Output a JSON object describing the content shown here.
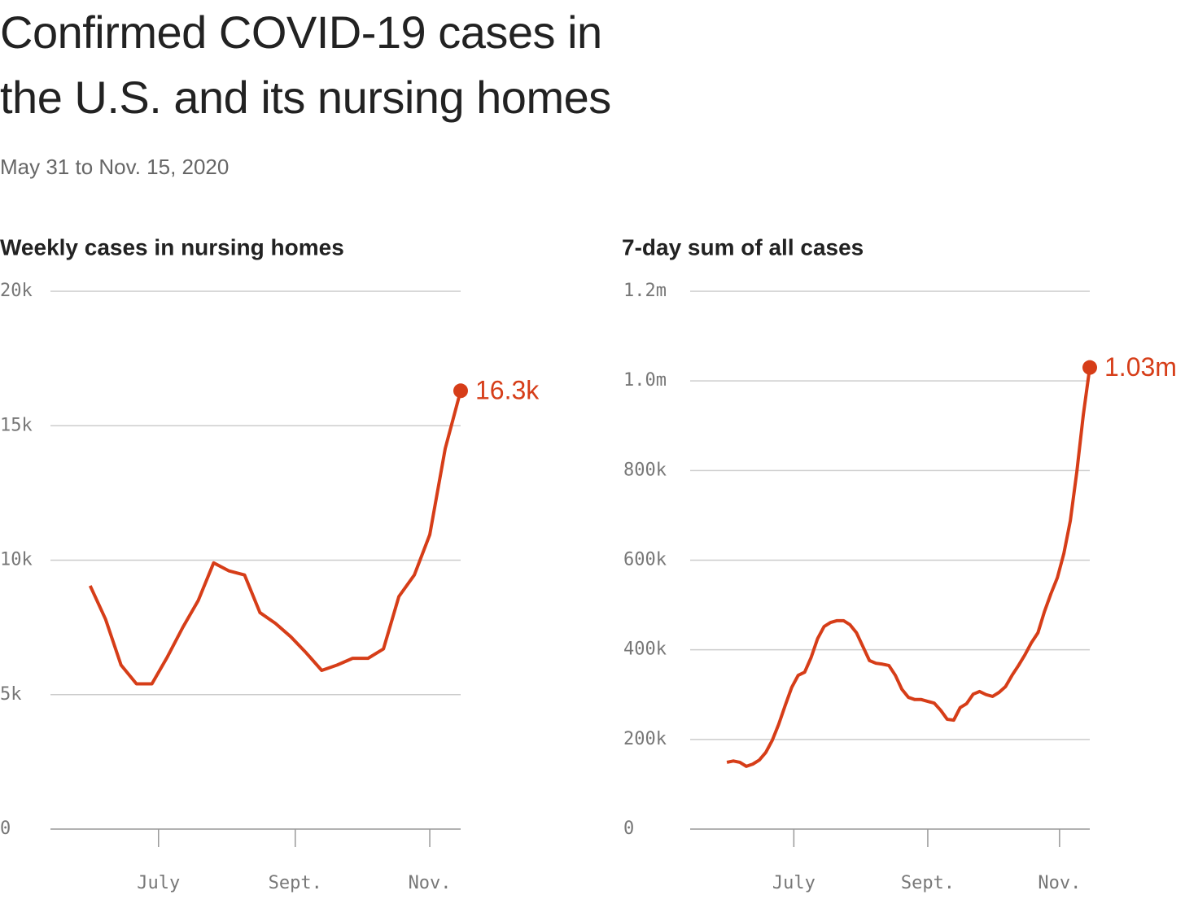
{
  "title": "Confirmed COVID-19 cases in\nthe U.S. and its nursing homes",
  "subtitle": "May 31 to Nov. 15, 2020",
  "chart_data": [
    {
      "type": "line",
      "title": "Weekly cases in nursing homes",
      "color": "#d63d18",
      "grid": true,
      "x": [
        "2020-05-31",
        "2020-06-07",
        "2020-06-14",
        "2020-06-21",
        "2020-06-28",
        "2020-07-05",
        "2020-07-12",
        "2020-07-19",
        "2020-07-26",
        "2020-08-02",
        "2020-08-09",
        "2020-08-16",
        "2020-08-23",
        "2020-08-30",
        "2020-09-06",
        "2020-09-13",
        "2020-09-20",
        "2020-09-27",
        "2020-10-04",
        "2020-10-11",
        "2020-10-18",
        "2020-10-25",
        "2020-11-01",
        "2020-11-08",
        "2020-11-15"
      ],
      "values": [
        9050,
        7800,
        6100,
        5400,
        5400,
        6400,
        7500,
        8500,
        9900,
        9600,
        9450,
        8050,
        7650,
        7150,
        6550,
        5900,
        6100,
        6350,
        6350,
        6700,
        8650,
        9450,
        10950,
        14150,
        16300
      ],
      "value_labels": [
        null,
        null,
        null,
        null,
        null,
        null,
        null,
        null,
        null,
        null,
        null,
        null,
        null,
        null,
        null,
        null,
        null,
        null,
        null,
        null,
        null,
        null,
        null,
        null,
        "16.3k"
      ],
      "xlim": [
        "2020-05-13",
        "2020-11-15"
      ],
      "xticks": [
        {
          "value": "2020-07-01",
          "label": "July"
        },
        {
          "value": "2020-09-01",
          "label": "Sept."
        },
        {
          "value": "2020-11-01",
          "label": "Nov."
        }
      ],
      "ylim": [
        0,
        20000
      ],
      "yticks": [
        0,
        {
          "value": 5000,
          "label": "5k"
        },
        {
          "value": 10000,
          "label": "10k"
        },
        {
          "value": 15000,
          "label": "15k"
        },
        {
          "value": 20000,
          "label": "20k"
        }
      ]
    },
    {
      "type": "line",
      "title": "7-day sum of all cases",
      "color": "#d63d18",
      "grid": true,
      "x": [
        "2020-05-31",
        "2020-06-03",
        "2020-06-06",
        "2020-06-09",
        "2020-06-12",
        "2020-06-15",
        "2020-06-18",
        "2020-06-21",
        "2020-06-24",
        "2020-06-27",
        "2020-06-30",
        "2020-07-03",
        "2020-07-06",
        "2020-07-09",
        "2020-07-12",
        "2020-07-15",
        "2020-07-18",
        "2020-07-21",
        "2020-07-24",
        "2020-07-27",
        "2020-07-30",
        "2020-08-02",
        "2020-08-05",
        "2020-08-08",
        "2020-08-11",
        "2020-08-14",
        "2020-08-17",
        "2020-08-20",
        "2020-08-23",
        "2020-08-26",
        "2020-08-29",
        "2020-09-01",
        "2020-09-04",
        "2020-09-07",
        "2020-09-10",
        "2020-09-13",
        "2020-09-16",
        "2020-09-19",
        "2020-09-22",
        "2020-09-25",
        "2020-09-28",
        "2020-10-01",
        "2020-10-04",
        "2020-10-07",
        "2020-10-10",
        "2020-10-13",
        "2020-10-16",
        "2020-10-19",
        "2020-10-22",
        "2020-10-25",
        "2020-10-28",
        "2020-10-31",
        "2020-11-03",
        "2020-11-06",
        "2020-11-09",
        "2020-11-12",
        "2020-11-15"
      ],
      "values": [
        149000,
        152000,
        149000,
        140000,
        145000,
        154000,
        171000,
        198000,
        234000,
        276000,
        316000,
        343000,
        350000,
        383000,
        425000,
        452000,
        461000,
        465000,
        465000,
        456000,
        438000,
        407000,
        376000,
        370000,
        368000,
        365000,
        343000,
        312000,
        294000,
        289000,
        289000,
        285000,
        281000,
        265000,
        245000,
        243000,
        271000,
        280000,
        301000,
        307000,
        300000,
        296000,
        305000,
        318000,
        343000,
        365000,
        389000,
        416000,
        438000,
        485000,
        525000,
        561000,
        615000,
        688000,
        797000,
        924000,
        1030000
      ],
      "value_labels": [
        null,
        null,
        null,
        null,
        null,
        null,
        null,
        null,
        null,
        null,
        null,
        null,
        null,
        null,
        null,
        null,
        null,
        null,
        null,
        null,
        null,
        null,
        null,
        null,
        null,
        null,
        null,
        null,
        null,
        null,
        null,
        null,
        null,
        null,
        null,
        null,
        null,
        null,
        null,
        null,
        null,
        null,
        null,
        null,
        null,
        null,
        null,
        null,
        null,
        null,
        null,
        null,
        null,
        null,
        null,
        null,
        "1.03m"
      ],
      "xlim": [
        "2020-05-14",
        "2020-11-15"
      ],
      "xticks": [
        {
          "value": "2020-07-01",
          "label": "July"
        },
        {
          "value": "2020-09-01",
          "label": "Sept."
        },
        {
          "value": "2020-11-01",
          "label": "Nov."
        }
      ],
      "ylim": [
        0,
        1200000
      ],
      "yticks": [
        0,
        {
          "value": 200000,
          "label": "200k"
        },
        {
          "value": 400000,
          "label": "400k"
        },
        {
          "value": 600000,
          "label": "600k"
        },
        {
          "value": 800000,
          "label": "800k"
        },
        {
          "value": 1000000,
          "label": "1.0m"
        },
        {
          "value": 1200000,
          "label": "1.2m"
        }
      ]
    }
  ]
}
